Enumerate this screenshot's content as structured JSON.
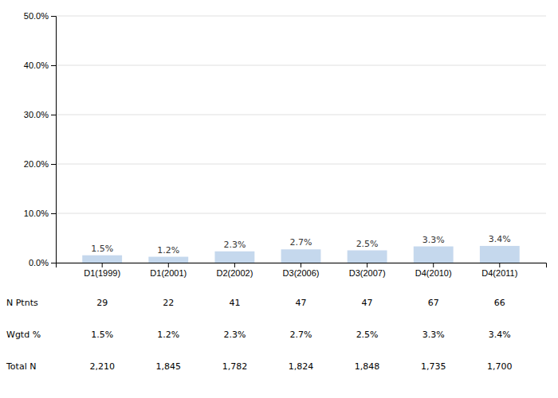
{
  "chart_data": {
    "type": "bar",
    "categories": [
      "D1(1999)",
      "D1(2001)",
      "D2(2002)",
      "D3(2006)",
      "D3(2007)",
      "D4(2010)",
      "D4(2011)"
    ],
    "values": [
      1.5,
      1.2,
      2.3,
      2.7,
      2.5,
      3.3,
      3.4
    ],
    "value_labels": [
      "1.5%",
      "1.2%",
      "2.3%",
      "2.7%",
      "2.5%",
      "3.3%",
      "3.4%"
    ],
    "data_labels": true,
    "color": "#c5d8ed",
    "ylim": [
      0,
      50
    ],
    "yticks": [
      {
        "value": 0,
        "label": "0.0%"
      },
      {
        "value": 10,
        "label": "10.0%"
      },
      {
        "value": 20,
        "label": "20.0%"
      },
      {
        "value": 30,
        "label": "30.0%"
      },
      {
        "value": 40,
        "label": "40.0%"
      },
      {
        "value": 50,
        "label": "50.0%"
      }
    ],
    "grid": true,
    "table": [
      {
        "label": "N Ptnts",
        "cells": [
          "29",
          "22",
          "41",
          "47",
          "47",
          "67",
          "66"
        ]
      },
      {
        "label": "Wgtd %",
        "cells": [
          "1.5%",
          "1.2%",
          "2.3%",
          "2.7%",
          "2.5%",
          "3.3%",
          "3.4%"
        ]
      },
      {
        "label": "Total N",
        "cells": [
          "2,210",
          "1,845",
          "1,782",
          "1,824",
          "1,848",
          "1,735",
          "1,700"
        ]
      }
    ]
  }
}
